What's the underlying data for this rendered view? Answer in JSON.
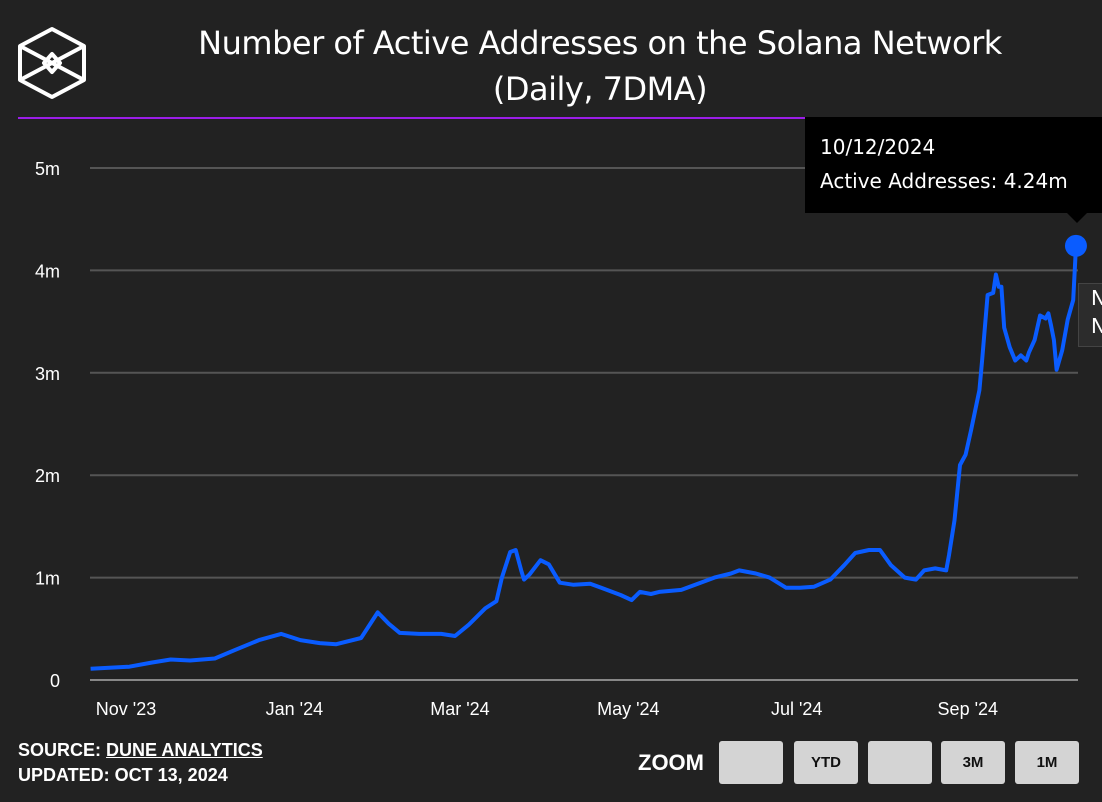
{
  "header": {
    "title_line1": "Number of Active Addresses on the Solana Network",
    "title_line2": "(Daily, 7DMA)",
    "logo": "the-block-cube-logo",
    "rule_color": "#9b1ee8"
  },
  "tooltip": {
    "date": "10/12/2024",
    "text": "Active Addresses: 4.24m",
    "partial_line1": "N",
    "partial_line2": "N"
  },
  "footer": {
    "source_label": "SOURCE:",
    "source_link": "DUNE ANALYTICS",
    "updated": "UPDATED: OCT 13, 2024"
  },
  "zoom": {
    "label": "ZOOM",
    "buttons": [
      "",
      "YTD",
      "",
      "3M",
      "1M"
    ]
  },
  "chart_data": {
    "type": "line",
    "title": "Number of Active Addresses on the Solana Network (Daily, 7DMA)",
    "xlabel": "",
    "ylabel": "",
    "ylim": [
      0,
      5
    ],
    "y_unit": "m",
    "yticks": [
      "0",
      "1m",
      "2m",
      "3m",
      "4m",
      "5m"
    ],
    "xticks": [
      {
        "date": "2023-11-01",
        "label": "Nov '23"
      },
      {
        "date": "2024-01-01",
        "label": "Jan '24"
      },
      {
        "date": "2024-03-01",
        "label": "Mar '24"
      },
      {
        "date": "2024-05-01",
        "label": "May '24"
      },
      {
        "date": "2024-07-01",
        "label": "Jul '24"
      },
      {
        "date": "2024-09-01",
        "label": "Sep '24"
      }
    ],
    "grid": true,
    "line_color": "#0a5cff",
    "series": [
      {
        "x": [
          "2023-10-21",
          "2023-11-04",
          "2023-11-12",
          "2023-11-19",
          "2023-11-26",
          "2023-12-05",
          "2023-12-12",
          "2023-12-21",
          "2023-12-29",
          "2024-01-05",
          "2024-01-12",
          "2024-01-18",
          "2024-01-27",
          "2024-02-02",
          "2024-02-06",
          "2024-02-10",
          "2024-02-17",
          "2024-02-25",
          "2024-03-01",
          "2024-03-06",
          "2024-03-12",
          "2024-03-16",
          "2024-03-18",
          "2024-03-21",
          "2024-03-23",
          "2024-03-25",
          "2024-03-26",
          "2024-03-28",
          "2024-04-01",
          "2024-04-04",
          "2024-04-08",
          "2024-04-13",
          "2024-04-19",
          "2024-04-23",
          "2024-04-30",
          "2024-05-04",
          "2024-05-07",
          "2024-05-11",
          "2024-05-14",
          "2024-05-22",
          "2024-05-29",
          "2024-06-03",
          "2024-06-09",
          "2024-06-12",
          "2024-06-18",
          "2024-06-23",
          "2024-06-29",
          "2024-07-04",
          "2024-07-09",
          "2024-07-15",
          "2024-07-20",
          "2024-07-24",
          "2024-07-29",
          "2024-08-02",
          "2024-08-06",
          "2024-08-11",
          "2024-08-15",
          "2024-08-18",
          "2024-08-22",
          "2024-08-26",
          "2024-08-27",
          "2024-08-29",
          "2024-08-31",
          "2024-09-02",
          "2024-09-04",
          "2024-09-07",
          "2024-09-08",
          "2024-09-10",
          "2024-09-12",
          "2024-09-13",
          "2024-09-14",
          "2024-09-15",
          "2024-09-16",
          "2024-09-18",
          "2024-09-20",
          "2024-09-22",
          "2024-09-24",
          "2024-09-25",
          "2024-09-27",
          "2024-09-29",
          "2024-10-01",
          "2024-10-02",
          "2024-10-03",
          "2024-10-04",
          "2024-10-05",
          "2024-10-07",
          "2024-10-09",
          "2024-10-11",
          "2024-10-12"
        ],
        "values": [
          0.11,
          0.13,
          0.17,
          0.2,
          0.19,
          0.21,
          0.29,
          0.39,
          0.45,
          0.39,
          0.36,
          0.35,
          0.41,
          0.66,
          0.55,
          0.46,
          0.45,
          0.45,
          0.43,
          0.54,
          0.7,
          0.77,
          1.0,
          1.25,
          1.27,
          1.07,
          0.98,
          1.03,
          1.17,
          1.13,
          0.95,
          0.93,
          0.94,
          0.9,
          0.83,
          0.78,
          0.86,
          0.84,
          0.86,
          0.88,
          0.95,
          1.0,
          1.04,
          1.07,
          1.04,
          1.0,
          0.9,
          0.9,
          0.91,
          0.98,
          1.12,
          1.24,
          1.27,
          1.27,
          1.12,
          1.0,
          0.98,
          1.07,
          1.09,
          1.07,
          1.22,
          1.56,
          2.1,
          2.2,
          2.44,
          2.83,
          3.12,
          3.76,
          3.78,
          3.96,
          3.84,
          3.84,
          3.44,
          3.25,
          3.12,
          3.17,
          3.12,
          3.2,
          3.32,
          3.56,
          3.53,
          3.58,
          3.46,
          3.32,
          3.03,
          3.22,
          3.52,
          3.71,
          4.24
        ]
      }
    ],
    "highlighted_point": {
      "x": "2024-10-12",
      "y": 4.24
    }
  }
}
